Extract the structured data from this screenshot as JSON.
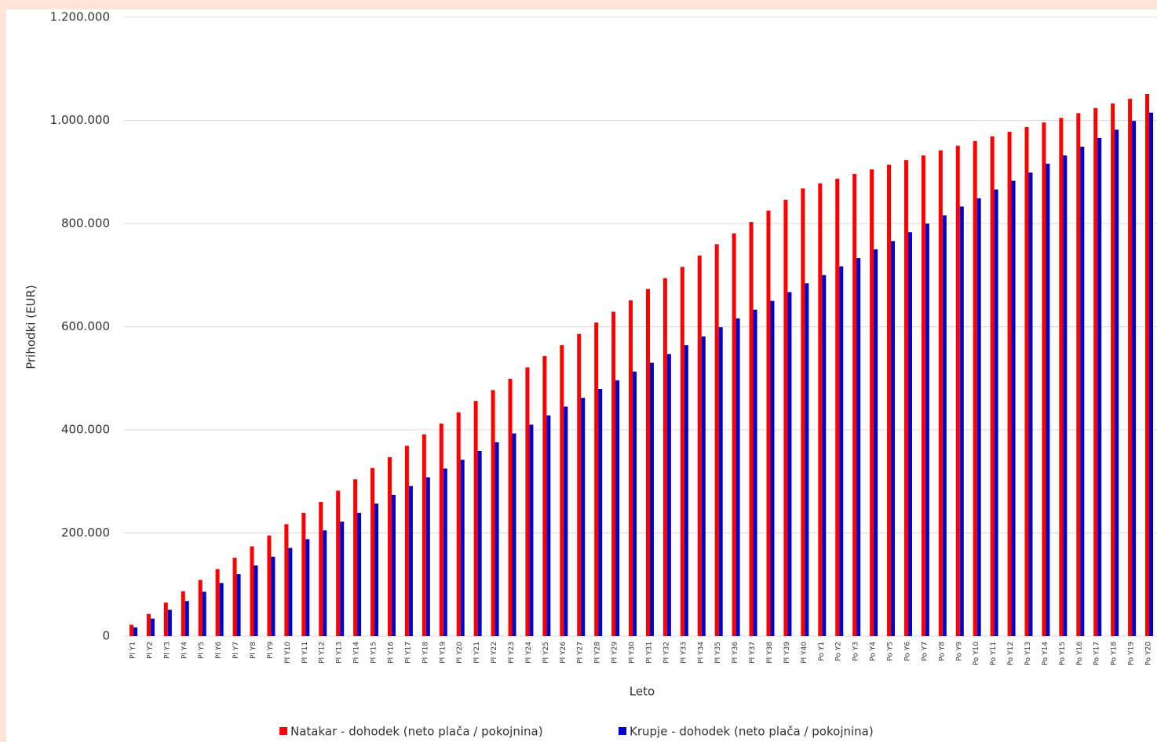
{
  "chart_data": {
    "type": "bar",
    "x_label": "Leto",
    "y_label": "Prihodki (EUR)",
    "categories": [
      "Pl Y1",
      "Pl Y2",
      "Pl Y3",
      "Pl Y4",
      "Pl Y5",
      "Pl Y6",
      "Pl Y7",
      "Pl Y8",
      "Pl Y9",
      "Pl Y10",
      "Pl Y11",
      "Pl Y12",
      "Pl Y13",
      "Pl Y14",
      "Pl Y15",
      "Pl Y16",
      "Pl Y17",
      "Pl Y18",
      "Pl Y19",
      "Pl Y20",
      "Pl Y21",
      "Pl Y22",
      "Pl Y23",
      "Pl Y24",
      "Pl Y25",
      "Pl Y26",
      "Pl Y27",
      "Pl Y28",
      "Pl Y29",
      "Pl Y30",
      "Pl Y31",
      "Pl Y32",
      "Pl Y33",
      "Pl Y34",
      "Pl Y35",
      "Pl Y36",
      "Pl Y37",
      "Pl Y38",
      "Pl Y39",
      "Pl Y40",
      "Po Y1",
      "Po Y2",
      "Po Y3",
      "Po Y4",
      "Po Y5",
      "Po Y6",
      "Po Y7",
      "Po Y8",
      "Po Y9",
      "Po Y10",
      "Po Y11",
      "Po Y12",
      "Po Y13",
      "Po Y14",
      "Po Y15",
      "Po Y16",
      "Po Y17",
      "Po Y18",
      "Po Y19",
      "Po Y20"
    ],
    "series": [
      {
        "name": "Natakar - dohodek (neto plača / pokojnina)",
        "color": "#ff0000",
        "values": [
          22000,
          43000,
          65000,
          87000,
          109000,
          130000,
          152000,
          174000,
          195000,
          217000,
          239000,
          260000,
          282000,
          304000,
          326000,
          347000,
          369000,
          391000,
          412000,
          434000,
          456000,
          477000,
          499000,
          521000,
          543000,
          564000,
          586000,
          608000,
          629000,
          651000,
          673000,
          694000,
          716000,
          738000,
          760000,
          781000,
          803000,
          825000,
          846000,
          868000,
          878000,
          887000,
          896000,
          905000,
          914000,
          923000,
          932000,
          942000,
          951000,
          960000,
          969000,
          978000,
          987000,
          996000,
          1005000,
          1014000,
          1024000,
          1033000,
          1042000,
          1051000
        ]
      },
      {
        "name": "Krupje - dohodek (neto plača / pokojnina)",
        "color": "#0000cc",
        "values": [
          17000,
          34000,
          51000,
          68000,
          86000,
          103000,
          120000,
          137000,
          154000,
          171000,
          188000,
          205000,
          222000,
          239000,
          257000,
          274000,
          291000,
          308000,
          325000,
          342000,
          359000,
          376000,
          393000,
          410000,
          428000,
          445000,
          462000,
          479000,
          496000,
          513000,
          530000,
          547000,
          564000,
          581000,
          599000,
          616000,
          633000,
          650000,
          667000,
          684000,
          700000,
          717000,
          733000,
          750000,
          766000,
          783000,
          800000,
          816000,
          833000,
          849000,
          866000,
          883000,
          899000,
          916000,
          932000,
          949000,
          966000,
          982000,
          999000,
          1015000
        ]
      }
    ],
    "ylim": [
      0,
      1200000
    ],
    "yticks": [
      0,
      {
        "value": 200000,
        "label": "200.000"
      },
      {
        "value": 400000,
        "label": "400.000"
      },
      {
        "value": 600000,
        "label": "600.000"
      },
      {
        "value": 800000,
        "label": "800.000"
      },
      {
        "value": 1000000,
        "label": "1.000.000"
      },
      {
        "value": 1200000,
        "label": "1.200.000"
      }
    ],
    "grid": true
  }
}
